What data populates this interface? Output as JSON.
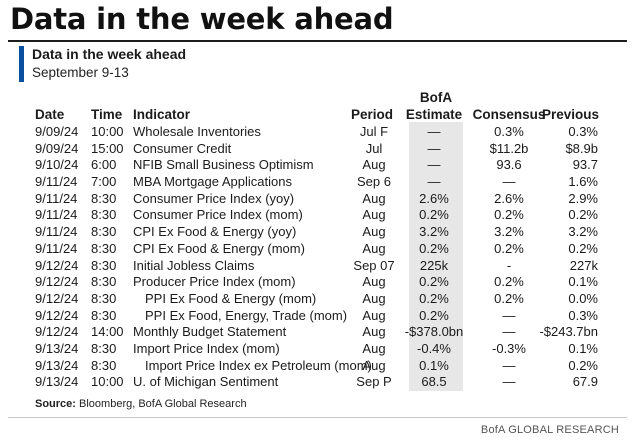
{
  "headline": "Data in the week ahead",
  "subtitle": "Data in the week ahead",
  "date_range": "September 9-13",
  "columns": {
    "date": "Date",
    "time": "Time",
    "indicator": "Indicator",
    "period": "Period",
    "bofa_top": "BofA",
    "bofa_bottom": "Estimate",
    "consensus": "Consensus",
    "previous": "Previous"
  },
  "rows": [
    {
      "date": "9/09/24",
      "time": "10:00",
      "indicator": "Wholesale Inventories",
      "indent": false,
      "period": "Jul F",
      "bofa": "—",
      "consensus": "0.3%",
      "previous": "0.3%"
    },
    {
      "date": "9/09/24",
      "time": "15:00",
      "indicator": "Consumer Credit",
      "indent": false,
      "period": "Jul",
      "bofa": "—",
      "consensus": "$11.2b",
      "previous": "$8.9b"
    },
    {
      "date": "9/10/24",
      "time": "6:00",
      "indicator": "NFIB Small Business Optimism",
      "indent": false,
      "period": "Aug",
      "bofa": "—",
      "consensus": "93.6",
      "previous": "93.7"
    },
    {
      "date": "9/11/24",
      "time": "7:00",
      "indicator": "MBA Mortgage Applications",
      "indent": false,
      "period": "Sep 6",
      "bofa": "—",
      "consensus": "—",
      "previous": "1.6%"
    },
    {
      "date": "9/11/24",
      "time": "8:30",
      "indicator": "Consumer Price Index (yoy)",
      "indent": false,
      "period": "Aug",
      "bofa": "2.6%",
      "consensus": "2.6%",
      "previous": "2.9%"
    },
    {
      "date": "9/11/24",
      "time": "8:30",
      "indicator": "Consumer Price Index (mom)",
      "indent": false,
      "period": "Aug",
      "bofa": "0.2%",
      "consensus": "0.2%",
      "previous": "0.2%"
    },
    {
      "date": "9/11/24",
      "time": "8:30",
      "indicator": "CPI Ex Food & Energy (yoy)",
      "indent": false,
      "period": "Aug",
      "bofa": "3.2%",
      "consensus": "3.2%",
      "previous": "3.2%"
    },
    {
      "date": "9/11/24",
      "time": "8:30",
      "indicator": "CPI Ex Food & Energy (mom)",
      "indent": false,
      "period": "Aug",
      "bofa": "0.2%",
      "consensus": "0.2%",
      "previous": "0.2%"
    },
    {
      "date": "9/12/24",
      "time": "8:30",
      "indicator": "Initial Jobless Claims",
      "indent": false,
      "period": "Sep 07",
      "bofa": "225k",
      "consensus": "-",
      "previous": "227k"
    },
    {
      "date": "9/12/24",
      "time": "8:30",
      "indicator": "Producer Price Index (mom)",
      "indent": false,
      "period": "Aug",
      "bofa": "0.2%",
      "consensus": "0.2%",
      "previous": "0.1%"
    },
    {
      "date": "9/12/24",
      "time": "8:30",
      "indicator": "PPI Ex Food & Energy (mom)",
      "indent": true,
      "period": "Aug",
      "bofa": "0.2%",
      "consensus": "0.2%",
      "previous": "0.0%"
    },
    {
      "date": "9/12/24",
      "time": "8:30",
      "indicator": "PPI Ex Food, Energy, Trade (mom)",
      "indent": true,
      "period": "Aug",
      "bofa": "0.2%",
      "consensus": "—",
      "previous": "0.3%"
    },
    {
      "date": "9/12/24",
      "time": "14:00",
      "indicator": "Monthly Budget Statement",
      "indent": false,
      "period": "Aug",
      "bofa": "-$378.0bn",
      "consensus": "—",
      "previous": "-$243.7bn"
    },
    {
      "date": "9/13/24",
      "time": "8:30",
      "indicator": "Import Price Index (mom)",
      "indent": false,
      "period": "Aug",
      "bofa": "-0.4%",
      "consensus": "-0.3%",
      "previous": "0.1%"
    },
    {
      "date": "9/13/24",
      "time": "8:30",
      "indicator": "Import Price Index ex Petroleum (mom)",
      "indent": true,
      "period": "Aug",
      "bofa": "0.1%",
      "consensus": "—",
      "previous": "0.2%"
    },
    {
      "date": "9/13/24",
      "time": "10:00",
      "indicator": "U. of Michigan Sentiment",
      "indent": false,
      "period": "Sep P",
      "bofa": "68.5",
      "consensus": "—",
      "previous": "67.9"
    }
  ],
  "source_label": "Source:",
  "source_text": " Bloomberg, BofA Global Research",
  "brand": "BofA GLOBAL RESEARCH",
  "colors": {
    "accent": "#0a4ea0",
    "shade": "#e7e7e7",
    "rule": "#1d1d1d"
  }
}
